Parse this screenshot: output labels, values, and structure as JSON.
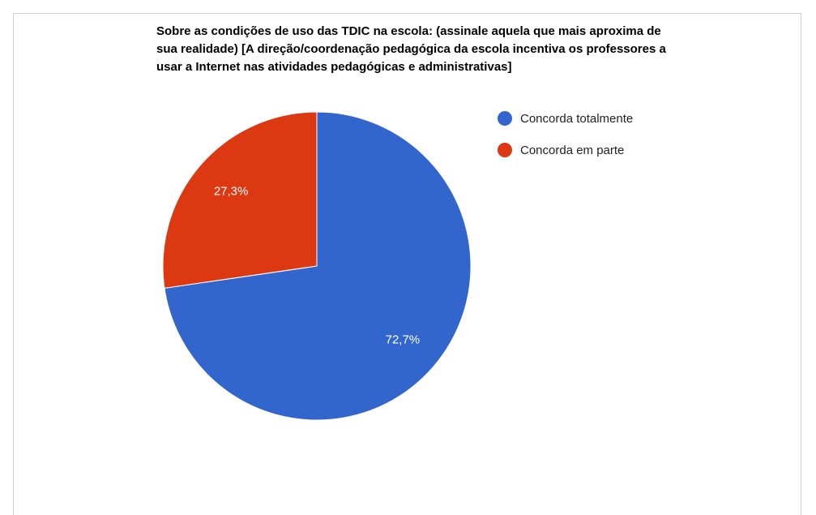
{
  "chart_data": {
    "type": "pie",
    "title": "Sobre as condições de uso das TDIC na escola: (assinale aquela que mais aproxima de sua realidade) [A direção/coordenação pedagógica da escola incentiva os professores a usar a Internet nas atividades pedagógicas e administrativas]",
    "categories": [
      "Concorda totalmente",
      "Concorda em parte"
    ],
    "values": [
      72.7,
      27.3
    ],
    "value_labels": [
      "72,7%",
      "27,3%"
    ],
    "colors": [
      "#3366cc",
      "#dc3912"
    ],
    "legend": "right"
  }
}
